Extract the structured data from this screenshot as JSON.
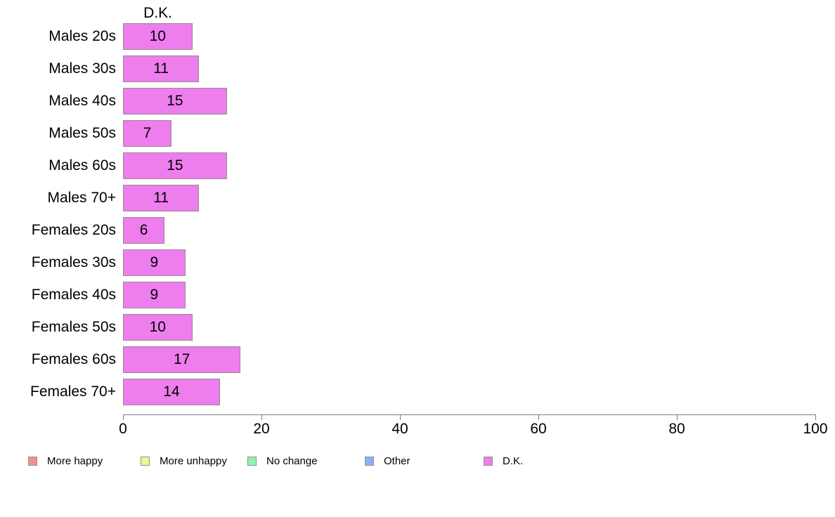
{
  "chart_data": {
    "type": "bar",
    "orientation": "horizontal",
    "panel_title": "D.K.",
    "title": "",
    "xlabel": "",
    "ylabel": "",
    "categories": [
      "Males 20s",
      "Males 30s",
      "Males 40s",
      "Males 50s",
      "Males 60s",
      "Males 70+",
      "Females 20s",
      "Females 30s",
      "Females 40s",
      "Females 50s",
      "Females 60s",
      "Females 70+"
    ],
    "values": [
      10,
      11,
      15,
      7,
      15,
      11,
      6,
      9,
      9,
      10,
      17,
      14
    ],
    "xlim": [
      0,
      100
    ],
    "x_ticks": [
      0,
      20,
      40,
      60,
      80,
      100
    ],
    "grid": false,
    "value_labels_inside_bars": true,
    "bar_color": "#ee7dee",
    "bar_border_color": "#8f8f8f",
    "axis_color": "#7f7f7f",
    "text_color": "#000000",
    "background_color": "#ffffff",
    "legend": {
      "position": "bottom",
      "entries": [
        {
          "label": "More happy",
          "color": "#f58f8f"
        },
        {
          "label": "More unhappy",
          "color": "#ecf88e"
        },
        {
          "label": "No change",
          "color": "#90f2ac"
        },
        {
          "label": "Other",
          "color": "#8db1f8"
        },
        {
          "label": "D.K.",
          "color": "#ee7dee"
        }
      ]
    }
  }
}
